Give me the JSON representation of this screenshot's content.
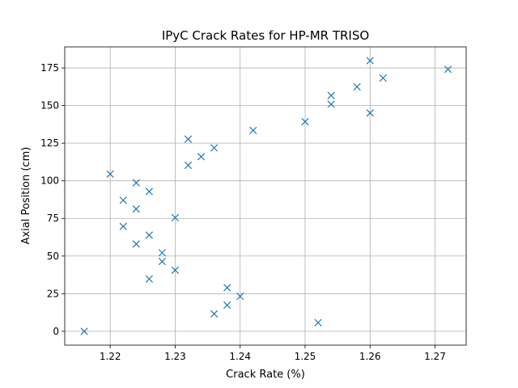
{
  "chart_data": {
    "type": "scatter",
    "title": "IPyC Crack Rates for HP-MR TRISO",
    "xlabel": "Crack Rate (%)",
    "ylabel": "Axial Position (cm)",
    "xlim": [
      1.213,
      1.2748
    ],
    "ylim": [
      -9.2,
      189.0
    ],
    "xticks": [
      1.22,
      1.23,
      1.24,
      1.25,
      1.26,
      1.27
    ],
    "xtick_labels": [
      "1.22",
      "1.23",
      "1.24",
      "1.25",
      "1.26",
      "1.27"
    ],
    "yticks": [
      0,
      25,
      50,
      75,
      100,
      125,
      150,
      175
    ],
    "ytick_labels": [
      "0",
      "25",
      "50",
      "75",
      "100",
      "125",
      "150",
      "175"
    ],
    "grid": true,
    "marker": "x",
    "marker_color": "#1f77b4",
    "series": [
      {
        "points": [
          {
            "x": 1.216,
            "y": 0.0
          },
          {
            "x": 1.252,
            "y": 5.8
          },
          {
            "x": 1.236,
            "y": 11.6
          },
          {
            "x": 1.238,
            "y": 17.4
          },
          {
            "x": 1.24,
            "y": 23.2
          },
          {
            "x": 1.238,
            "y": 29.0
          },
          {
            "x": 1.226,
            "y": 34.8
          },
          {
            "x": 1.23,
            "y": 40.6
          },
          {
            "x": 1.228,
            "y": 46.4
          },
          {
            "x": 1.228,
            "y": 52.2
          },
          {
            "x": 1.224,
            "y": 58.0
          },
          {
            "x": 1.226,
            "y": 63.9
          },
          {
            "x": 1.222,
            "y": 69.7
          },
          {
            "x": 1.23,
            "y": 75.5
          },
          {
            "x": 1.224,
            "y": 81.3
          },
          {
            "x": 1.222,
            "y": 87.1
          },
          {
            "x": 1.226,
            "y": 92.9
          },
          {
            "x": 1.224,
            "y": 98.7
          },
          {
            "x": 1.22,
            "y": 104.5
          },
          {
            "x": 1.232,
            "y": 110.3
          },
          {
            "x": 1.234,
            "y": 116.1
          },
          {
            "x": 1.236,
            "y": 121.9
          },
          {
            "x": 1.232,
            "y": 127.7
          },
          {
            "x": 1.242,
            "y": 133.5
          },
          {
            "x": 1.25,
            "y": 139.3
          },
          {
            "x": 1.26,
            "y": 145.1
          },
          {
            "x": 1.254,
            "y": 150.9
          },
          {
            "x": 1.254,
            "y": 156.7
          },
          {
            "x": 1.258,
            "y": 162.5
          },
          {
            "x": 1.262,
            "y": 168.3
          },
          {
            "x": 1.272,
            "y": 174.1
          },
          {
            "x": 1.26,
            "y": 179.9
          }
        ]
      }
    ]
  }
}
